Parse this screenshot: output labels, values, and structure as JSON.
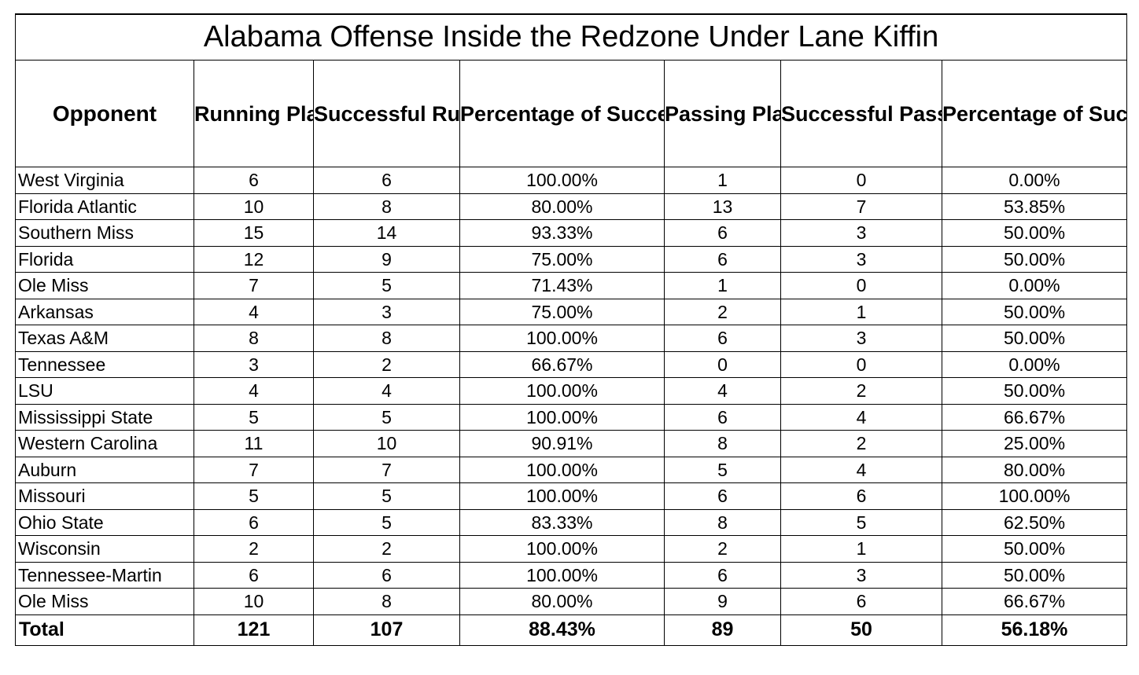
{
  "chart_data": {
    "type": "table",
    "title": "Alabama Offense Inside the Redzone Under Lane Kiffin",
    "columns": [
      "Opponent",
      "Running Plays",
      "Successful Running Plays",
      "Percentage of Successful Running Plays",
      "Passing Plays",
      "Successful Passing Plays",
      "Percentage of Successful Passing Plays"
    ],
    "rows": [
      [
        "West Virginia",
        "6",
        "6",
        "100.00%",
        "1",
        "0",
        "0.00%"
      ],
      [
        "Florida Atlantic",
        "10",
        "8",
        "80.00%",
        "13",
        "7",
        "53.85%"
      ],
      [
        "Southern Miss",
        "15",
        "14",
        "93.33%",
        "6",
        "3",
        "50.00%"
      ],
      [
        "Florida",
        "12",
        "9",
        "75.00%",
        "6",
        "3",
        "50.00%"
      ],
      [
        "Ole Miss",
        "7",
        "5",
        "71.43%",
        "1",
        "0",
        "0.00%"
      ],
      [
        "Arkansas",
        "4",
        "3",
        "75.00%",
        "2",
        "1",
        "50.00%"
      ],
      [
        "Texas A&M",
        "8",
        "8",
        "100.00%",
        "6",
        "3",
        "50.00%"
      ],
      [
        "Tennessee",
        "3",
        "2",
        "66.67%",
        "0",
        "0",
        "0.00%"
      ],
      [
        "LSU",
        "4",
        "4",
        "100.00%",
        "4",
        "2",
        "50.00%"
      ],
      [
        "Mississippi State",
        "5",
        "5",
        "100.00%",
        "6",
        "4",
        "66.67%"
      ],
      [
        "Western Carolina",
        "11",
        "10",
        "90.91%",
        "8",
        "2",
        "25.00%"
      ],
      [
        "Auburn",
        "7",
        "7",
        "100.00%",
        "5",
        "4",
        "80.00%"
      ],
      [
        "Missouri",
        "5",
        "5",
        "100.00%",
        "6",
        "6",
        "100.00%"
      ],
      [
        "Ohio State",
        "6",
        "5",
        "83.33%",
        "8",
        "5",
        "62.50%"
      ],
      [
        "Wisconsin",
        "2",
        "2",
        "100.00%",
        "2",
        "1",
        "50.00%"
      ],
      [
        "Tennessee-Martin",
        "6",
        "6",
        "100.00%",
        "6",
        "3",
        "50.00%"
      ],
      [
        "Ole Miss",
        "10",
        "8",
        "80.00%",
        "9",
        "6",
        "66.67%"
      ]
    ],
    "total": [
      "Total",
      "121",
      "107",
      "88.43%",
      "89",
      "50",
      "56.18%"
    ]
  }
}
